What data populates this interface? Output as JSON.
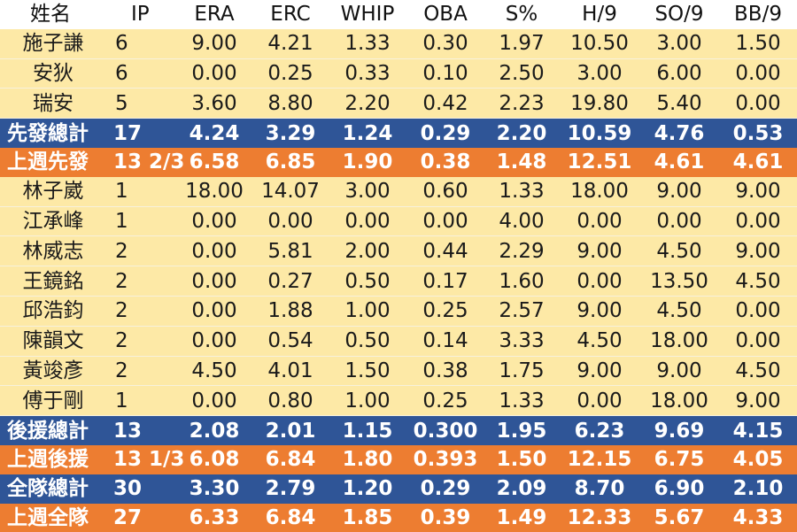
{
  "columns": [
    "姓名",
    "IP",
    "ERA",
    "ERC",
    "WHIP",
    "OBA",
    "S%",
    "H/9",
    "SO/9",
    "BB/9"
  ],
  "rows": [
    {
      "kind": "player",
      "cells": [
        "施子謙",
        "6",
        "9.00",
        "4.21",
        "1.33",
        "0.30",
        "1.97",
        "10.50",
        "3.00",
        "1.50"
      ]
    },
    {
      "kind": "player",
      "cells": [
        "安狄",
        "6",
        "0.00",
        "0.25",
        "0.33",
        "0.10",
        "2.50",
        "3.00",
        "6.00",
        "0.00"
      ]
    },
    {
      "kind": "player",
      "cells": [
        "瑞安",
        "5",
        "3.60",
        "8.80",
        "2.20",
        "0.42",
        "2.23",
        "19.80",
        "5.40",
        "0.00"
      ]
    },
    {
      "kind": "sum-blue",
      "cells": [
        "先發總計",
        "17",
        "4.24",
        "3.29",
        "1.24",
        "0.29",
        "2.20",
        "10.59",
        "4.76",
        "0.53"
      ]
    },
    {
      "kind": "sum-orange",
      "cells": [
        "上週先發",
        "13 2/3",
        "6.58",
        "6.85",
        "1.90",
        "0.38",
        "1.48",
        "12.51",
        "4.61",
        "4.61"
      ]
    },
    {
      "kind": "player",
      "cells": [
        "林子崴",
        "1",
        "18.00",
        "14.07",
        "3.00",
        "0.60",
        "1.33",
        "18.00",
        "9.00",
        "9.00"
      ]
    },
    {
      "kind": "player",
      "cells": [
        "江承峰",
        "1",
        "0.00",
        "0.00",
        "0.00",
        "0.00",
        "4.00",
        "0.00",
        "0.00",
        "0.00"
      ]
    },
    {
      "kind": "player",
      "cells": [
        "林威志",
        "2",
        "0.00",
        "5.81",
        "2.00",
        "0.44",
        "2.29",
        "9.00",
        "4.50",
        "9.00"
      ]
    },
    {
      "kind": "player",
      "cells": [
        "王鏡銘",
        "2",
        "0.00",
        "0.27",
        "0.50",
        "0.17",
        "1.60",
        "0.00",
        "13.50",
        "4.50"
      ]
    },
    {
      "kind": "player",
      "cells": [
        "邱浩鈞",
        "2",
        "0.00",
        "1.88",
        "1.00",
        "0.25",
        "2.57",
        "9.00",
        "4.50",
        "0.00"
      ]
    },
    {
      "kind": "player",
      "cells": [
        "陳韻文",
        "2",
        "0.00",
        "0.54",
        "0.50",
        "0.14",
        "3.33",
        "4.50",
        "18.00",
        "0.00"
      ]
    },
    {
      "kind": "player",
      "cells": [
        "黃竣彥",
        "2",
        "4.50",
        "4.01",
        "1.50",
        "0.38",
        "1.75",
        "9.00",
        "9.00",
        "4.50"
      ]
    },
    {
      "kind": "player",
      "cells": [
        "傅于剛",
        "1",
        "0.00",
        "0.80",
        "1.00",
        "0.25",
        "1.33",
        "0.00",
        "18.00",
        "9.00"
      ]
    },
    {
      "kind": "sum-blue",
      "cells": [
        "後援總計",
        "13",
        "2.08",
        "2.01",
        "1.15",
        "0.300",
        "1.95",
        "6.23",
        "9.69",
        "4.15"
      ]
    },
    {
      "kind": "sum-orange",
      "cells": [
        "上週後援",
        "13 1/3",
        "6.08",
        "6.84",
        "1.80",
        "0.393",
        "1.50",
        "12.15",
        "6.75",
        "4.05"
      ]
    },
    {
      "kind": "sum-blue",
      "cells": [
        "全隊總計",
        "30",
        "3.30",
        "2.79",
        "1.20",
        "0.29",
        "2.09",
        "8.70",
        "6.90",
        "2.10"
      ]
    },
    {
      "kind": "sum-orange",
      "cells": [
        "上週全隊",
        "27",
        "6.33",
        "6.84",
        "1.85",
        "0.39",
        "1.49",
        "12.33",
        "5.67",
        "4.33"
      ]
    }
  ]
}
